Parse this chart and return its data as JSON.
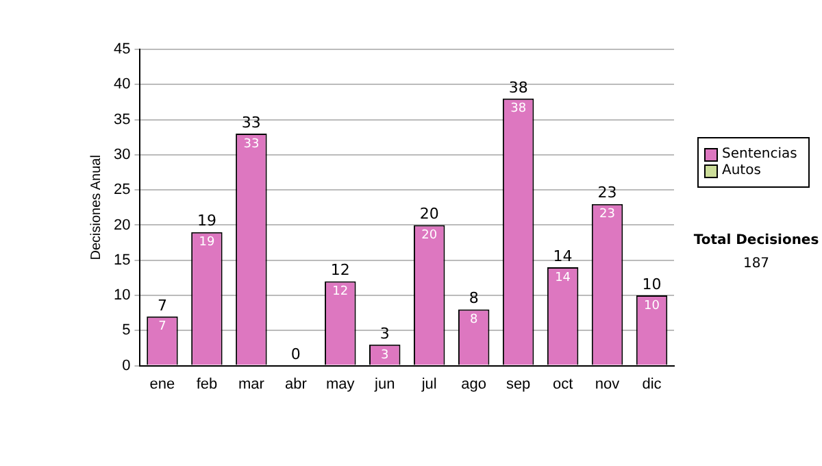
{
  "chart_data": {
    "type": "bar",
    "stacked": true,
    "ylabel": "Decisiones Anual",
    "categories": [
      "ene",
      "feb",
      "mar",
      "abr",
      "may",
      "jun",
      "jul",
      "ago",
      "sep",
      "oct",
      "nov",
      "dic"
    ],
    "series": [
      {
        "name": "Sentencias",
        "color": "#dd77c0",
        "values": [
          7,
          19,
          33,
          0,
          12,
          3,
          20,
          8,
          38,
          14,
          23,
          10
        ],
        "value_labels": [
          "7",
          "19",
          "33",
          null,
          "12",
          "3",
          "20",
          "8",
          "38",
          "14",
          "23",
          "10"
        ]
      },
      {
        "name": "Autos",
        "color": "#ccdd99",
        "values": [
          0,
          0,
          0,
          0,
          0,
          0,
          0,
          0,
          0,
          0,
          0,
          0
        ]
      }
    ],
    "totals": [
      "7",
      "19",
      "33",
      "0",
      "12",
      "3",
      "20",
      "8",
      "38",
      "14",
      "23",
      "10"
    ],
    "ylim": [
      0,
      45
    ],
    "yticks": [
      0,
      5,
      10,
      15,
      20,
      25,
      30,
      35,
      40,
      45
    ],
    "grid": "y",
    "legend": "right",
    "annotations": [
      "Total Decisiones",
      "187"
    ]
  }
}
